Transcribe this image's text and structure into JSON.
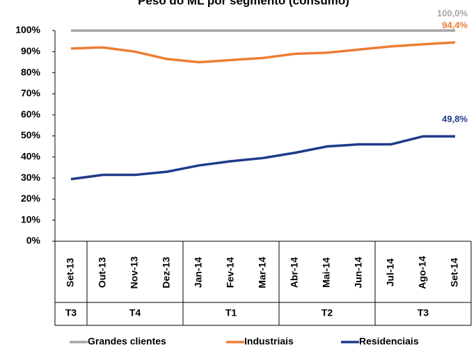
{
  "chart_data": {
    "type": "line",
    "title": "Peso do ML por segmento (consumo)",
    "categories": [
      "Set-13",
      "Out-13",
      "Nov-13",
      "Dez-13",
      "Jan-14",
      "Fev-14",
      "Mar-14",
      "Abr-14",
      "Mai-14",
      "Jun-14",
      "Jul-14",
      "Ago-14",
      "Set-14"
    ],
    "groups": [
      {
        "label": "T3",
        "span": 1
      },
      {
        "label": "T4",
        "span": 3
      },
      {
        "label": "T1",
        "span": 3
      },
      {
        "label": "T2",
        "span": 3
      },
      {
        "label": "T3",
        "span": 3
      }
    ],
    "series": [
      {
        "name": "Grandes clientes",
        "color": "#a6a6a6",
        "values": [
          100,
          100,
          100,
          100,
          100,
          100,
          100,
          100,
          100,
          100,
          100,
          100,
          100
        ],
        "value_labels": [
          null,
          null,
          null,
          null,
          null,
          null,
          null,
          null,
          null,
          null,
          null,
          null,
          "100,0%"
        ]
      },
      {
        "name": "Industriais",
        "color": "#ed7d31",
        "values": [
          91.5,
          92,
          90,
          86.5,
          85,
          86,
          87,
          89,
          89.5,
          91,
          92.5,
          93.5,
          94.4
        ],
        "value_labels": [
          null,
          null,
          null,
          null,
          null,
          null,
          null,
          null,
          null,
          null,
          null,
          null,
          "94,4%"
        ]
      },
      {
        "name": "Residenciais",
        "color": "#1f3a8a",
        "values": [
          29.5,
          31.5,
          31.5,
          33,
          36,
          38,
          39.5,
          42,
          45,
          46,
          46,
          49.8,
          49.8
        ],
        "value_labels": [
          null,
          null,
          null,
          null,
          null,
          null,
          null,
          null,
          null,
          null,
          null,
          null,
          "49,8%"
        ]
      }
    ],
    "ylim": [
      0,
      100
    ],
    "yticks": [
      {
        "value": 0,
        "label": "0%"
      },
      {
        "value": 10,
        "label": "10%"
      },
      {
        "value": 20,
        "label": "20%"
      },
      {
        "value": 30,
        "label": "30%"
      },
      {
        "value": 40,
        "label": "40%"
      },
      {
        "value": 50,
        "label": "50%"
      },
      {
        "value": 60,
        "label": "60%"
      },
      {
        "value": 70,
        "label": "70%"
      },
      {
        "value": 80,
        "label": "80%"
      },
      {
        "value": 90,
        "label": "90%"
      },
      {
        "value": 100,
        "label": "100%"
      }
    ],
    "grid": false,
    "legend": "bottom"
  }
}
